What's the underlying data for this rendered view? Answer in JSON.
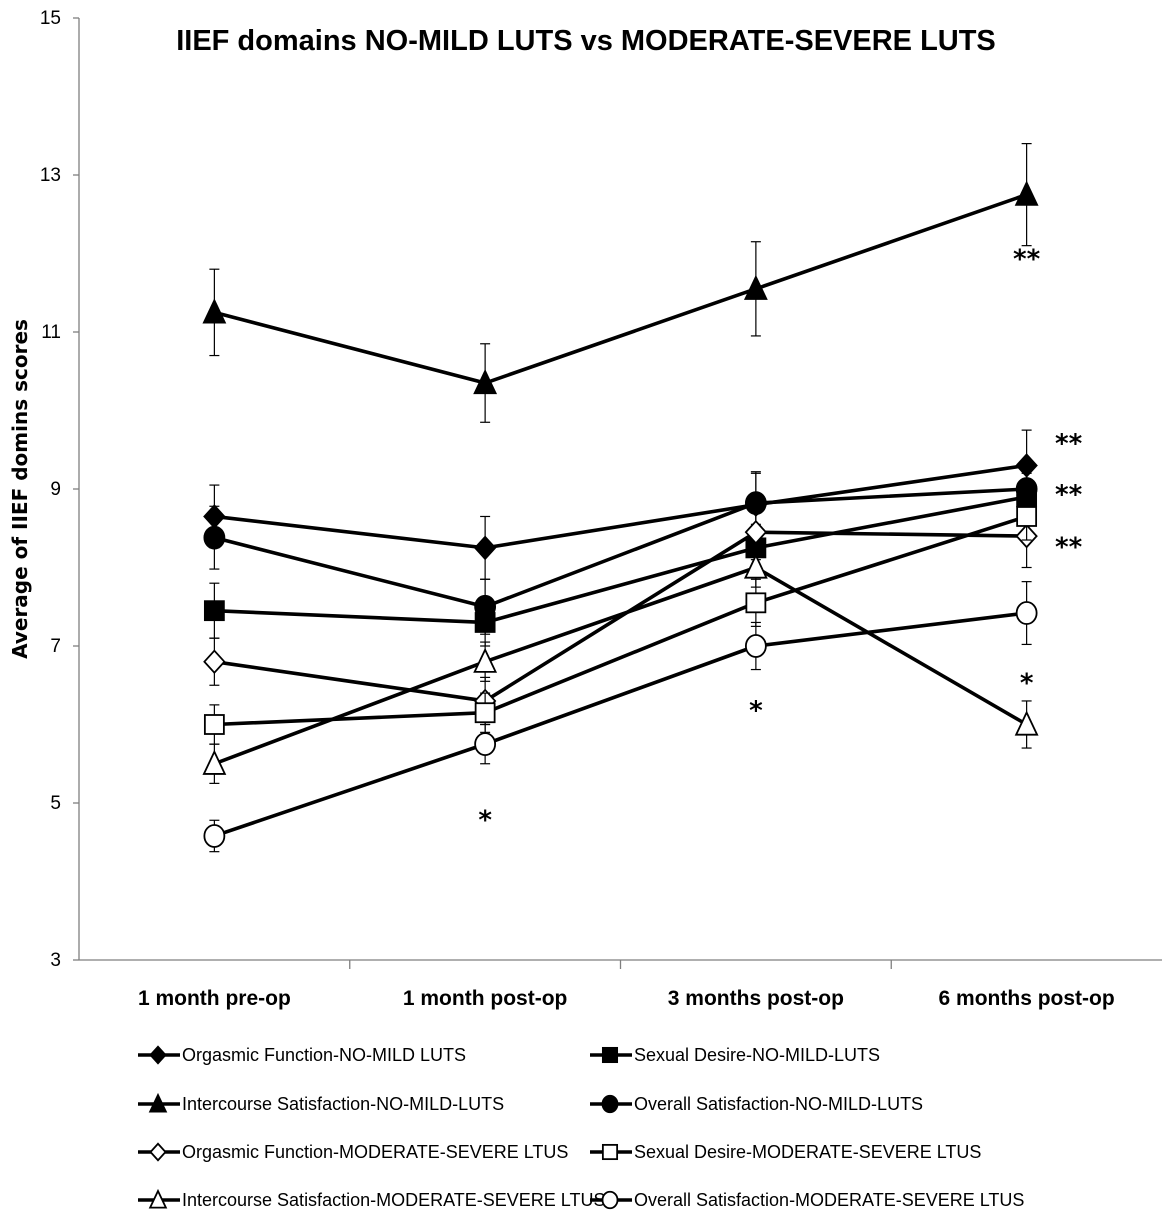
{
  "chart_data": {
    "type": "line",
    "title": "IIEF domains NO-MILD LUTS vs MODERATE-SEVERE LUTS",
    "xlabel": "",
    "ylabel": "Average of IIEF domins scores",
    "ylim": [
      3,
      15
    ],
    "yticks": [
      "3",
      "5",
      "7",
      "9",
      "11",
      "13",
      "15"
    ],
    "categories": [
      "1 month pre-op",
      "1 month post-op",
      "3 months post-op",
      "6 months post-op"
    ],
    "grid": false,
    "legend_position": "bottom",
    "series": [
      {
        "name": "Orgasmic Function-NO-MILD LUTS",
        "marker": "diamond",
        "filled": true,
        "values": [
          8.65,
          8.25,
          8.8,
          9.3
        ],
        "errors": [
          0.4,
          0.4,
          0.4,
          0.45
        ]
      },
      {
        "name": "Sexual Desire-NO-MILD-LUTS",
        "marker": "square",
        "filled": true,
        "values": [
          7.45,
          7.3,
          8.25,
          8.9
        ],
        "errors": [
          0.35,
          0.3,
          0.3,
          0.3
        ]
      },
      {
        "name": "Intercourse Satisfaction-NO-MILD-LUTS",
        "marker": "triangle",
        "filled": true,
        "values": [
          11.25,
          10.35,
          11.55,
          12.75
        ],
        "errors": [
          0.55,
          0.5,
          0.6,
          0.65
        ]
      },
      {
        "name": "Overall Satisfaction-NO-MILD-LUTS",
        "marker": "circle",
        "filled": true,
        "values": [
          8.38,
          7.5,
          8.82,
          9.0
        ],
        "errors": [
          0.4,
          0.35,
          0.4,
          0.35
        ]
      },
      {
        "name": "Orgasmic Function-MODERATE-SEVERE LTUS",
        "marker": "diamond",
        "filled": false,
        "values": [
          6.8,
          6.3,
          8.45,
          8.4
        ],
        "errors": [
          0.3,
          0.3,
          0.35,
          0.4
        ]
      },
      {
        "name": "Sexual Desire-MODERATE-SEVERE LTUS",
        "marker": "square",
        "filled": false,
        "values": [
          6.0,
          6.15,
          7.55,
          8.65
        ],
        "errors": [
          0.25,
          0.25,
          0.3,
          0.3
        ]
      },
      {
        "name": "Intercourse Satisfaction-MODERATE-SEVERE LTUS",
        "marker": "triangle",
        "filled": false,
        "values": [
          5.5,
          6.8,
          8.0,
          6.0
        ],
        "errors": [
          0.25,
          0.25,
          0.25,
          0.3
        ]
      },
      {
        "name": "Overall Satisfaction-MODERATE-SEVERE LTUS",
        "marker": "circle",
        "filled": false,
        "values": [
          4.58,
          5.75,
          7.0,
          7.42
        ],
        "errors": [
          0.2,
          0.25,
          0.3,
          0.4
        ]
      }
    ],
    "annotations": [
      {
        "text": "**",
        "category_index": 3,
        "y": 11.95
      },
      {
        "text": "**",
        "x_offset": 0.5,
        "y": 9.6
      },
      {
        "text": "**",
        "x_offset": 0.5,
        "y": 8.95
      },
      {
        "text": "**",
        "x_offset": 0.5,
        "y": 8.28
      },
      {
        "text": "*",
        "category_index": 3,
        "y": 6.55
      },
      {
        "text": "*",
        "category_index": 2,
        "y": 6.2
      },
      {
        "text": "*",
        "category_index": 1,
        "y": 4.8
      }
    ]
  }
}
